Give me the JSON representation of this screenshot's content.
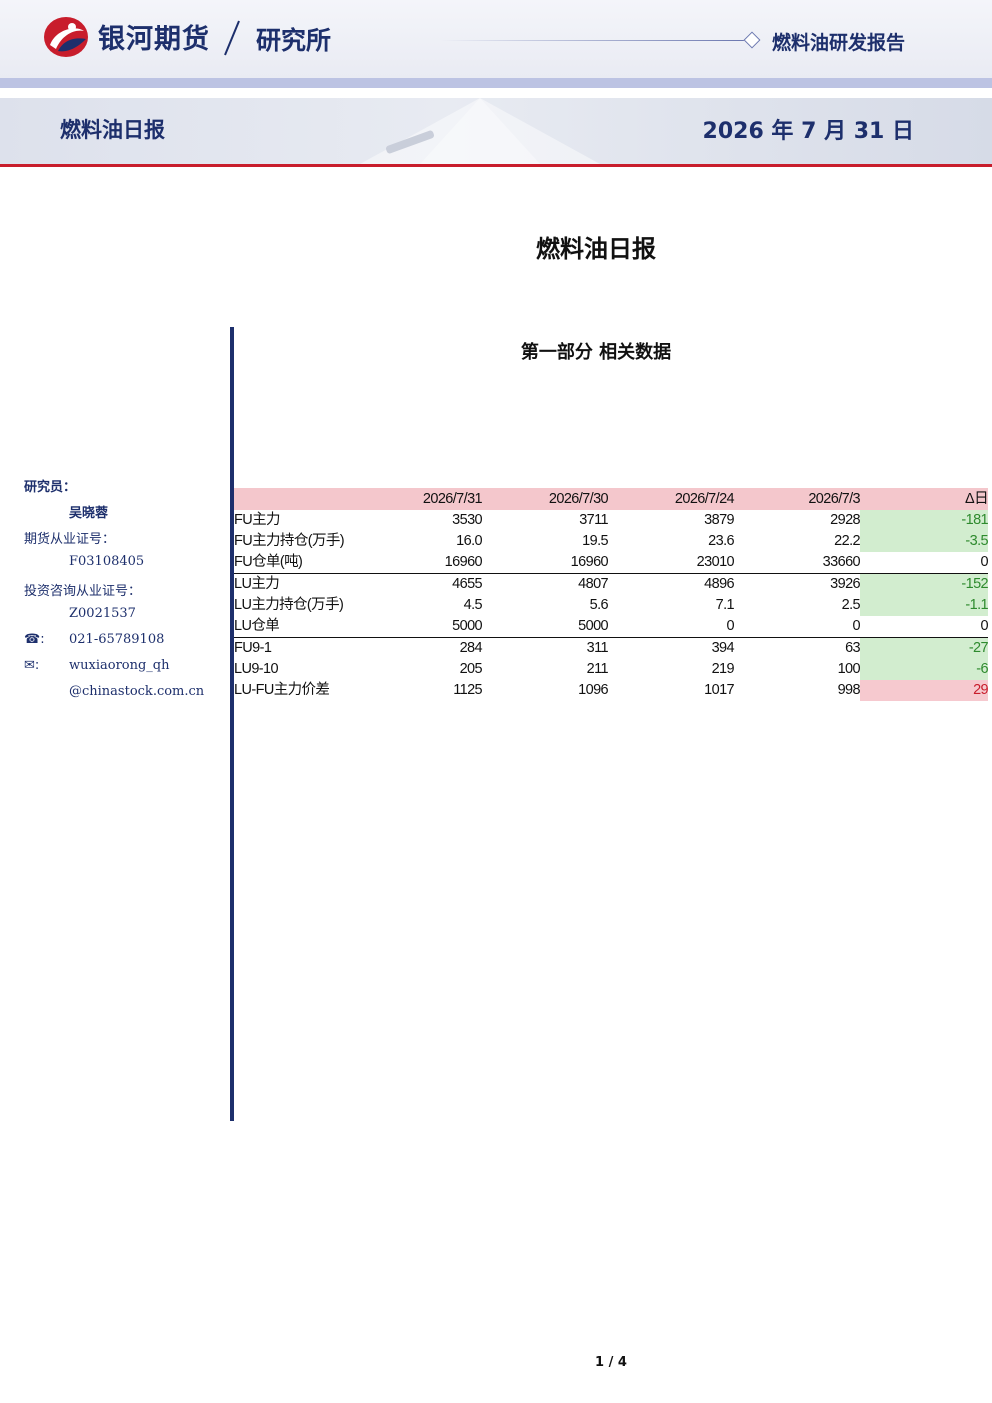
{
  "header": {
    "brand": "银河期货",
    "department": "研究所",
    "report_type": "燃料油研发报告",
    "band_title": "燃料油日报",
    "band_date": "2026 年 7 月 31 日"
  },
  "document": {
    "title": "燃料油日报",
    "section_title": "第一部分 相关数据",
    "page_number": "1 / 4"
  },
  "sidebar": {
    "researcher_label": "研究员：",
    "researcher_name": "吴晓蓉",
    "futures_cert_label": "期货从业证号：",
    "futures_cert_no": "F03108405",
    "invest_cert_label": "投资咨询从业证号：",
    "invest_cert_no": "Z0021537",
    "phone_icon": "phone-icon",
    "phone": "021-65789108",
    "email_icon": "mail-icon",
    "email_line1": "wuxiaorong_qh",
    "email_line2": "@chinastock.com.cn"
  },
  "table": {
    "headers": [
      "",
      "2026/7/31",
      "2026/7/30",
      "2026/7/24",
      "2026/7/3",
      "Δ日"
    ],
    "rows": [
      {
        "name": "FU主力",
        "values": [
          "3530",
          "3711",
          "3879",
          "2928"
        ],
        "delta": "-181",
        "delta_sign": "neg"
      },
      {
        "name": "FU主力持仓(万手)",
        "values": [
          "16.0",
          "19.5",
          "23.6",
          "22.2"
        ],
        "delta": "-3.5",
        "delta_sign": "neg"
      },
      {
        "name": "FU仓单(吨)",
        "values": [
          "16960",
          "16960",
          "23010",
          "33660"
        ],
        "delta": "0",
        "delta_sign": "zero"
      },
      {
        "name": "LU主力",
        "values": [
          "4655",
          "4807",
          "4896",
          "3926"
        ],
        "delta": "-152",
        "delta_sign": "neg"
      },
      {
        "name": "LU主力持仓(万手)",
        "values": [
          "4.5",
          "5.6",
          "7.1",
          "2.5"
        ],
        "delta": "-1.1",
        "delta_sign": "neg"
      },
      {
        "name": "LU仓单",
        "values": [
          "5000",
          "5000",
          "0",
          "0"
        ],
        "delta": "0",
        "delta_sign": "zero"
      },
      {
        "name": "FU9-1",
        "values": [
          "284",
          "311",
          "394",
          "63"
        ],
        "delta": "-27",
        "delta_sign": "neg"
      },
      {
        "name": "LU9-10",
        "values": [
          "205",
          "211",
          "219",
          "100"
        ],
        "delta": "-6",
        "delta_sign": "neg"
      },
      {
        "name": "LU-FU主力价差",
        "values": [
          "1125",
          "1096",
          "1017",
          "998"
        ],
        "delta": "29",
        "delta_sign": "pos"
      }
    ]
  },
  "colors": {
    "brand_navy": "#1d2f6c",
    "brand_red": "#c81d2c",
    "header_pink": "#f4c7cc",
    "up_red": "#c81d2c",
    "down_green": "#2e8a2e"
  }
}
